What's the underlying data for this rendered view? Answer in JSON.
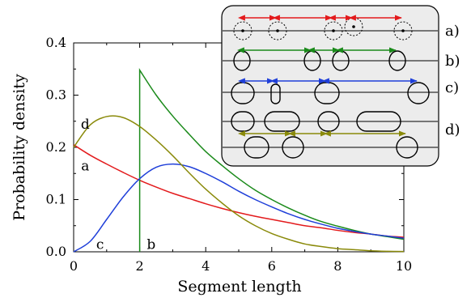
{
  "chart_data": {
    "type": "line",
    "title": "",
    "xlabel": "Segment length",
    "ylabel": "Probability density",
    "xlim": [
      0,
      10
    ],
    "ylim": [
      0,
      0.4
    ],
    "x_ticks": [
      "0",
      "2",
      "4",
      "6",
      "8",
      "10"
    ],
    "y_ticks": [
      "0.0",
      "0.1",
      "0.2",
      "0.3",
      "0.4"
    ],
    "grid": false,
    "series": [
      {
        "name": "a",
        "color": "#e31a1c",
        "x": [
          0,
          0.5,
          1,
          1.5,
          2,
          2.5,
          3,
          3.5,
          4,
          4.5,
          5,
          5.5,
          6,
          6.5,
          7,
          7.5,
          8,
          8.5,
          9,
          9.5,
          10
        ],
        "y": [
          0.205,
          0.185,
          0.168,
          0.152,
          0.137,
          0.124,
          0.112,
          0.102,
          0.092,
          0.083,
          0.075,
          0.068,
          0.062,
          0.056,
          0.05,
          0.046,
          0.041,
          0.037,
          0.034,
          0.03,
          0.028
        ]
      },
      {
        "name": "b",
        "color": "#1a8a1a",
        "x": [
          2,
          2.0001,
          2.5,
          3,
          3.5,
          4,
          4.5,
          5,
          5.5,
          6,
          6.5,
          7,
          7.5,
          8,
          8.5,
          9,
          9.5,
          10
        ],
        "y": [
          0,
          0.348,
          0.3,
          0.26,
          0.225,
          0.192,
          0.165,
          0.14,
          0.118,
          0.1,
          0.084,
          0.07,
          0.058,
          0.049,
          0.041,
          0.034,
          0.029,
          0.024
        ]
      },
      {
        "name": "c",
        "color": "#1f3fd9",
        "x": [
          0,
          0.5,
          1,
          1.5,
          2,
          2.5,
          3,
          3.5,
          4,
          4.5,
          5,
          5.5,
          6,
          6.5,
          7,
          7.5,
          8,
          8.5,
          9,
          9.5,
          10
        ],
        "y": [
          0,
          0.02,
          0.062,
          0.105,
          0.14,
          0.162,
          0.168,
          0.163,
          0.15,
          0.134,
          0.116,
          0.1,
          0.086,
          0.073,
          0.062,
          0.053,
          0.045,
          0.039,
          0.034,
          0.03,
          0.026
        ]
      },
      {
        "name": "d",
        "color": "#8a8a0a",
        "x": [
          0,
          0.5,
          1,
          1.5,
          2,
          2.5,
          3,
          3.5,
          4,
          4.5,
          5,
          5.5,
          6,
          6.5,
          7,
          7.5,
          8,
          8.5,
          9,
          9.5,
          10
        ],
        "y": [
          0.2,
          0.243,
          0.259,
          0.257,
          0.24,
          0.214,
          0.184,
          0.151,
          0.12,
          0.093,
          0.069,
          0.05,
          0.035,
          0.024,
          0.015,
          0.01,
          0.006,
          0.004,
          0.002,
          0.001,
          0.0005
        ]
      }
    ],
    "curve_labels": [
      {
        "text": "a",
        "x": 0.35,
        "y": 0.165
      },
      {
        "text": "b",
        "x": 2.35,
        "y": 0.015
      },
      {
        "text": "c",
        "x": 0.8,
        "y": 0.015
      },
      {
        "text": "d",
        "x": 0.35,
        "y": 0.245
      }
    ],
    "inset": {
      "rows": [
        {
          "label": "a)",
          "color": "#e31a1c"
        },
        {
          "label": "b)",
          "color": "#1a8a1a"
        },
        {
          "label": "c)",
          "color": "#1f3fd9"
        },
        {
          "label": "d)",
          "color": "#8a8a0a"
        }
      ]
    }
  }
}
